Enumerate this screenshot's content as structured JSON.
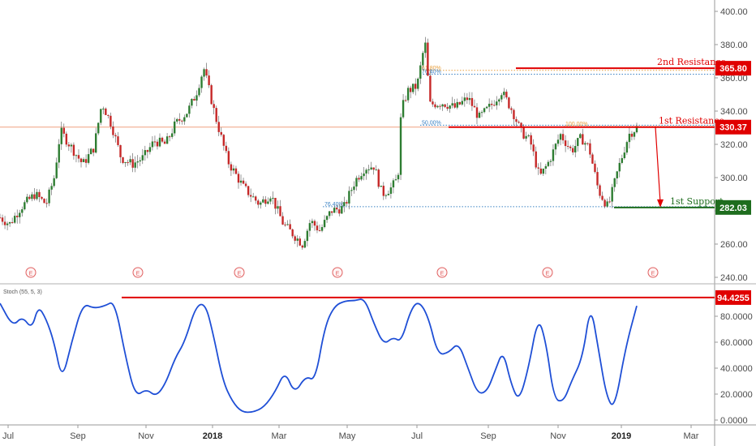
{
  "chart_data": [
    {
      "type": "candlestick",
      "indicator_panel": false,
      "ylim": [
        240,
        410
      ],
      "y_ticks": [
        "400.00",
        "380.00",
        "360.00",
        "340.00",
        "320.00",
        "300.00",
        "280.00",
        "260.00",
        "240.00"
      ],
      "x_ticks": [
        {
          "label": "Jul",
          "bold": false
        },
        {
          "label": "Sep",
          "bold": false
        },
        {
          "label": "Nov",
          "bold": false
        },
        {
          "label": "2018",
          "bold": true
        },
        {
          "label": "Mar",
          "bold": false
        },
        {
          "label": "May",
          "bold": false
        },
        {
          "label": "Jul",
          "bold": false
        },
        {
          "label": "Sep",
          "bold": false
        },
        {
          "label": "Nov",
          "bold": false
        },
        {
          "label": "2019",
          "bold": true
        },
        {
          "label": "Mar",
          "bold": false
        }
      ],
      "price_path": [
        [
          0,
          276
        ],
        [
          0.6,
          272
        ],
        [
          1.3,
          282
        ],
        [
          2.2,
          290
        ],
        [
          2.9,
          284
        ],
        [
          3.4,
          300
        ],
        [
          3.8,
          328
        ],
        [
          4.5,
          318
        ],
        [
          5.2,
          308
        ],
        [
          5.9,
          318
        ],
        [
          6.4,
          345
        ],
        [
          7.0,
          332
        ],
        [
          7.6,
          312
        ],
        [
          8.3,
          308
        ],
        [
          9.0,
          312
        ],
        [
          9.7,
          322
        ],
        [
          10.4,
          320
        ],
        [
          11.0,
          332
        ],
        [
          11.8,
          340
        ],
        [
          12.3,
          350
        ],
        [
          12.8,
          366
        ],
        [
          13.5,
          338
        ],
        [
          14.3,
          310
        ],
        [
          15.3,
          294
        ],
        [
          16.3,
          284
        ],
        [
          17.0,
          290
        ],
        [
          17.8,
          272
        ],
        [
          18.4,
          266
        ],
        [
          19.0,
          260
        ],
        [
          19.5,
          274
        ],
        [
          20.1,
          268
        ],
        [
          20.8,
          280
        ],
        [
          21.6,
          282
        ],
        [
          22.3,
          298
        ],
        [
          22.9,
          306
        ],
        [
          23.5,
          307
        ],
        [
          24.0,
          290
        ],
        [
          24.6,
          294
        ],
        [
          25.0,
          300
        ],
        [
          25.2,
          340
        ],
        [
          25.6,
          352
        ],
        [
          26.2,
          355
        ],
        [
          26.7,
          382
        ],
        [
          27.0,
          344
        ],
        [
          27.8,
          345
        ],
        [
          28.6,
          342
        ],
        [
          29.4,
          348
        ],
        [
          30.1,
          336
        ],
        [
          30.9,
          344
        ],
        [
          31.5,
          352
        ],
        [
          32.2,
          340
        ],
        [
          32.7,
          328
        ],
        [
          33.3,
          322
        ],
        [
          33.9,
          300
        ],
        [
          34.5,
          310
        ],
        [
          35.2,
          326
        ],
        [
          35.9,
          316
        ],
        [
          36.5,
          324
        ],
        [
          37.0,
          318
        ],
        [
          37.6,
          292
        ],
        [
          38.2,
          282
        ],
        [
          38.8,
          304
        ],
        [
          39.5,
          326
        ],
        [
          40.0,
          330
        ]
      ],
      "fibonacci_labels": [
        "61.80%",
        "76.40%",
        "50.00%",
        "76.40%",
        "100.00%"
      ],
      "levels": [
        {
          "label": "2nd Resistance",
          "value": 365.8,
          "badge": "365.80",
          "color": "#e00000"
        },
        {
          "label": "1st Resistance",
          "value": 330.37,
          "badge": "330.37",
          "color": "#e00000"
        },
        {
          "label": "1st Support",
          "value": 282.03,
          "badge": "282.03",
          "color": "#1e6d1e"
        }
      ],
      "earnings_markers": [
        "E",
        "E",
        "E",
        "E",
        "E",
        "E",
        "E"
      ]
    },
    {
      "type": "line",
      "indicator": "Stoch (55, 5, 3)",
      "ylim": [
        0,
        100
      ],
      "y_ticks": [
        "80.0000",
        "60.0000",
        "40.0000",
        "20.0000",
        "0.0000"
      ],
      "level": {
        "value": 94.4255,
        "badge": "94.4255",
        "color": "#e00000"
      },
      "series": [
        {
          "color": "#1f4fd6",
          "points": [
            [
              0,
              90
            ],
            [
              0.8,
              72
            ],
            [
              1.4,
              80
            ],
            [
              2.0,
              70
            ],
            [
              2.4,
              88
            ],
            [
              2.9,
              78
            ],
            [
              3.4,
              60
            ],
            [
              3.9,
              30
            ],
            [
              4.5,
              60
            ],
            [
              5.2,
              90
            ],
            [
              5.9,
              86
            ],
            [
              6.6,
              88
            ],
            [
              7.2,
              92
            ],
            [
              7.9,
              48
            ],
            [
              8.5,
              18
            ],
            [
              9.2,
              24
            ],
            [
              9.8,
              18
            ],
            [
              10.4,
              28
            ],
            [
              11.0,
              48
            ],
            [
              11.6,
              60
            ],
            [
              12.3,
              88
            ],
            [
              12.9,
              90
            ],
            [
              13.4,
              66
            ],
            [
              14.0,
              30
            ],
            [
              14.6,
              14
            ],
            [
              15.2,
              6
            ],
            [
              15.9,
              6
            ],
            [
              16.6,
              10
            ],
            [
              17.3,
              22
            ],
            [
              17.9,
              38
            ],
            [
              18.5,
              20
            ],
            [
              19.2,
              34
            ],
            [
              19.8,
              30
            ],
            [
              20.4,
              72
            ],
            [
              21.0,
              88
            ],
            [
              21.7,
              92
            ],
            [
              22.3,
              92
            ],
            [
              22.9,
              94
            ],
            [
              23.5,
              74
            ],
            [
              24.1,
              58
            ],
            [
              24.7,
              64
            ],
            [
              25.2,
              60
            ],
            [
              25.8,
              85
            ],
            [
              26.3,
              92
            ],
            [
              26.9,
              80
            ],
            [
              27.5,
              50
            ],
            [
              28.2,
              52
            ],
            [
              28.8,
              60
            ],
            [
              29.4,
              40
            ],
            [
              30.0,
              20
            ],
            [
              30.6,
              22
            ],
            [
              31.1,
              38
            ],
            [
              31.6,
              54
            ],
            [
              32.1,
              28
            ],
            [
              32.6,
              14
            ],
            [
              33.2,
              40
            ],
            [
              33.8,
              80
            ],
            [
              34.3,
              60
            ],
            [
              34.8,
              16
            ],
            [
              35.4,
              14
            ],
            [
              35.9,
              30
            ],
            [
              36.6,
              48
            ],
            [
              37.1,
              90
            ],
            [
              37.6,
              54
            ],
            [
              38.1,
              18
            ],
            [
              38.6,
              8
            ],
            [
              39.3,
              56
            ],
            [
              40.0,
              88
            ]
          ]
        }
      ]
    }
  ]
}
